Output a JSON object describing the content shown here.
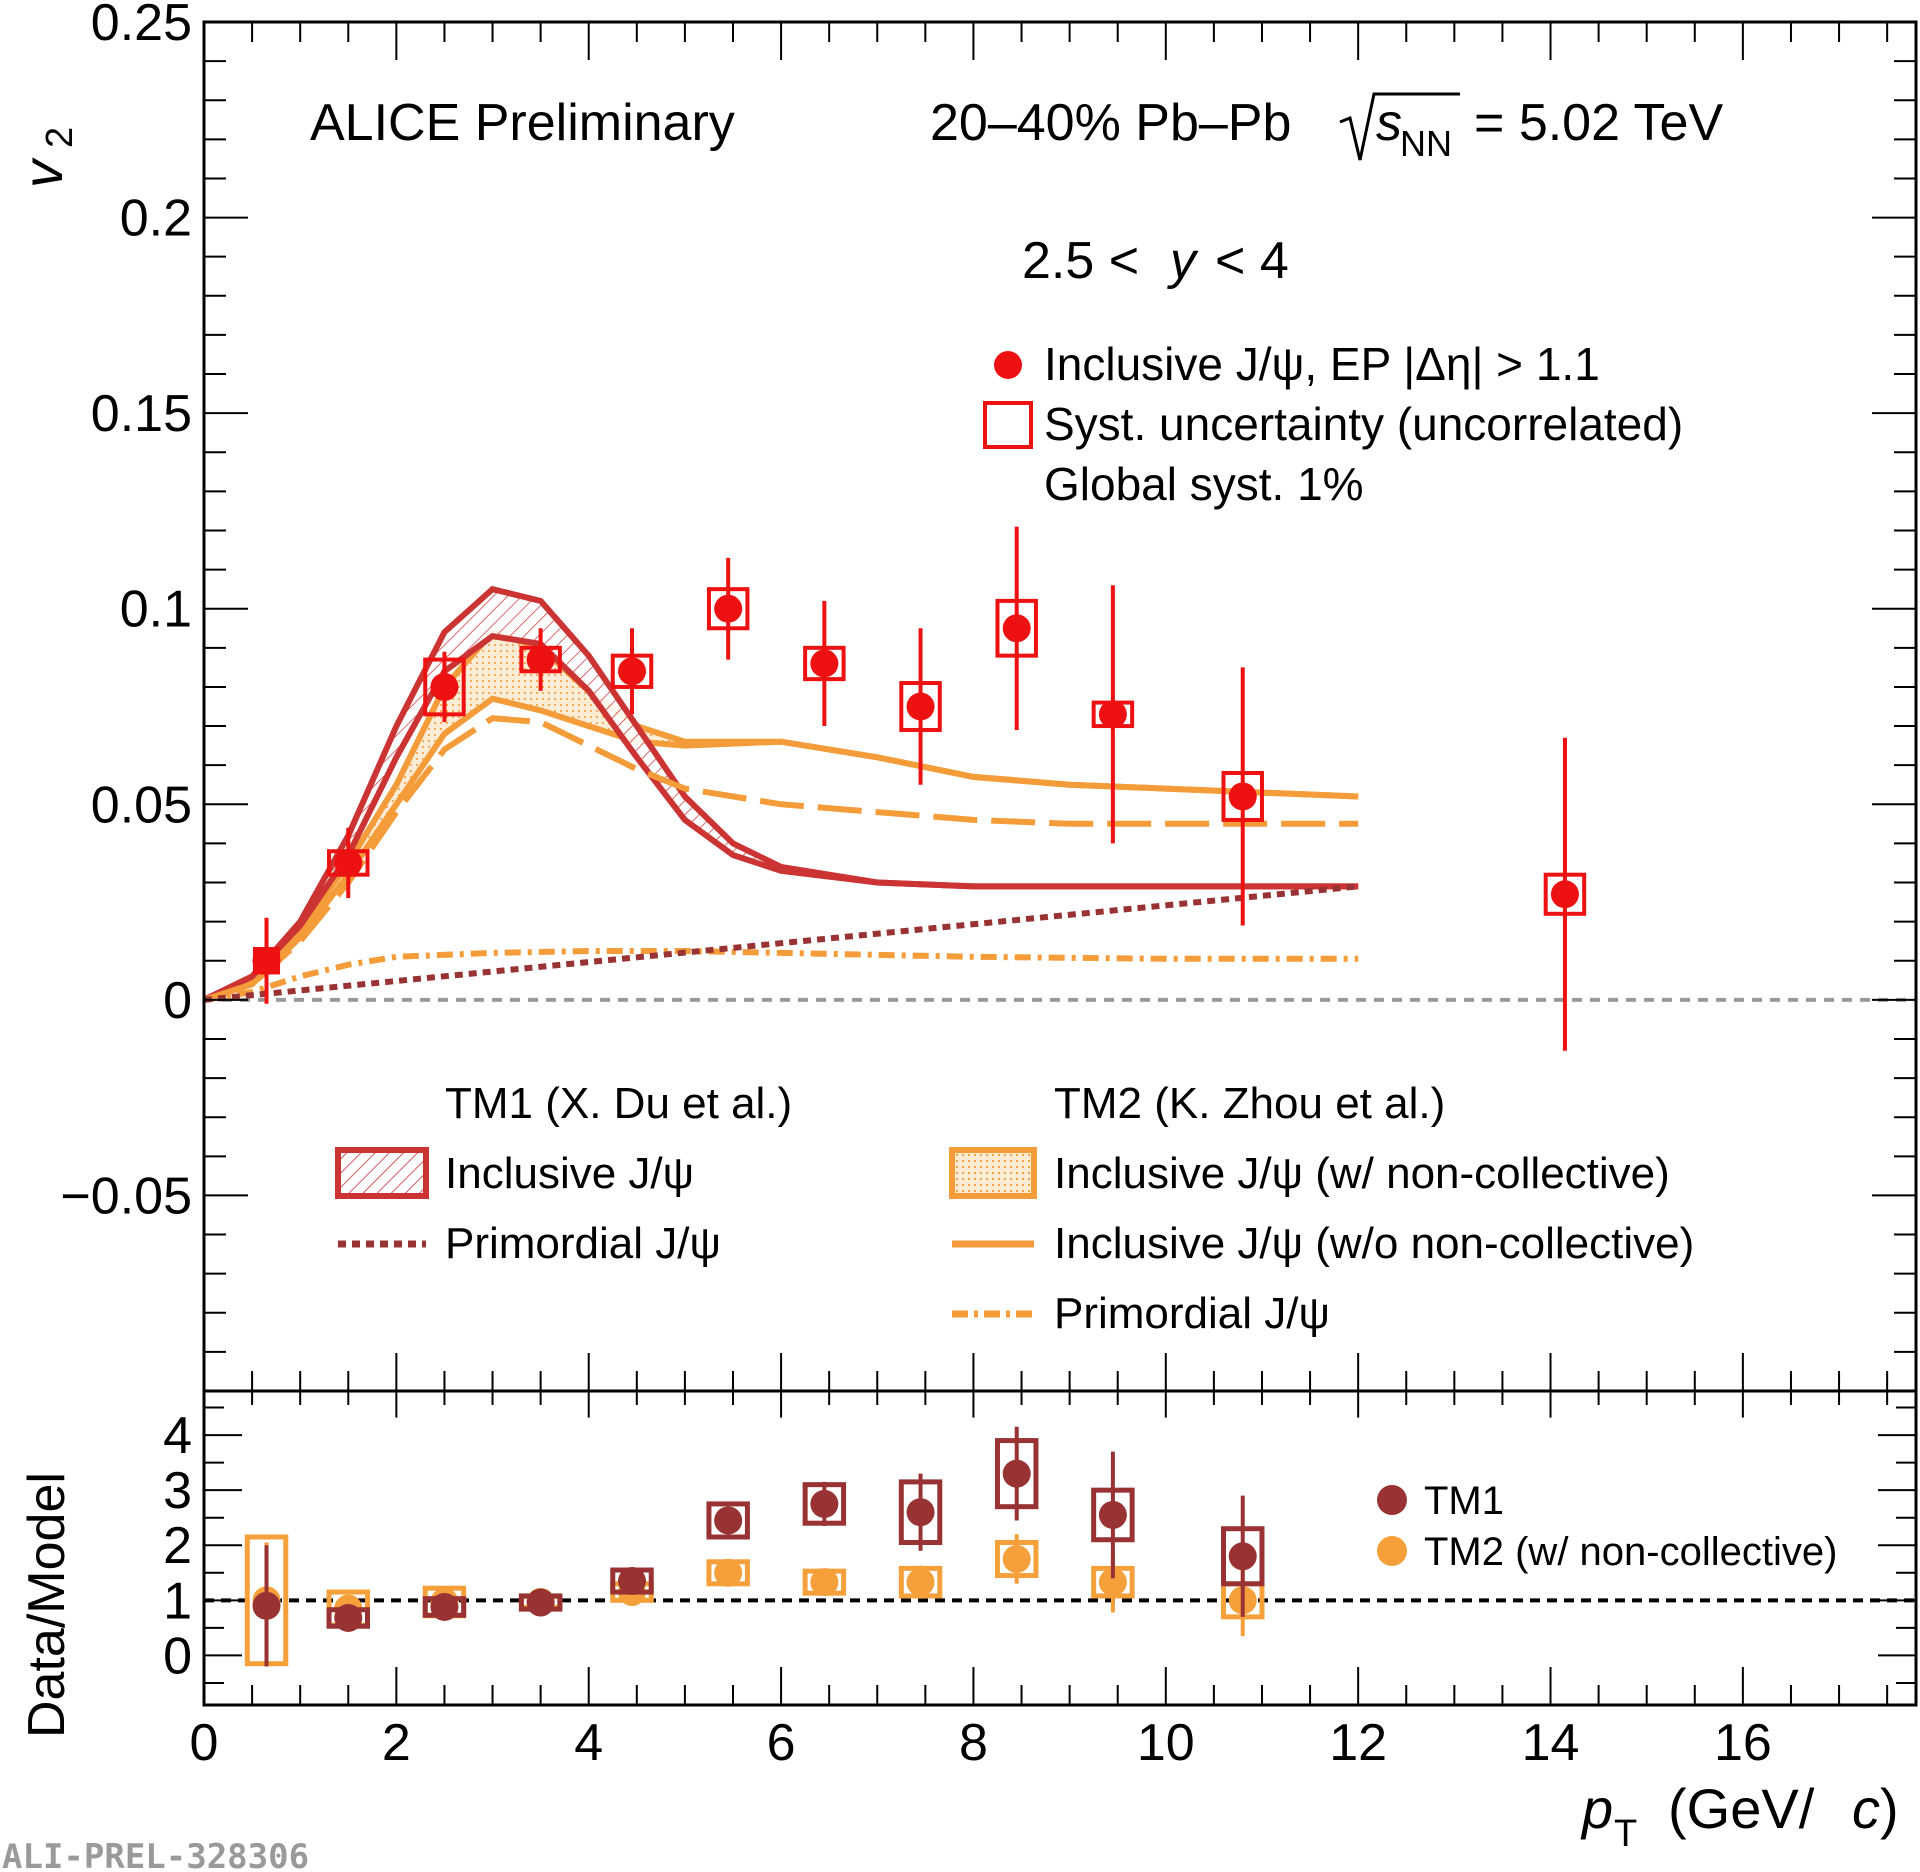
{
  "chart_data": [
    {
      "type": "scatter",
      "panel": "top",
      "ylabel": "v",
      "ylabel_sub": "2",
      "ylim": [
        -0.1,
        0.25
      ],
      "xlim": [
        0,
        17.8
      ],
      "yticks": [
        {
          "v": 0.25,
          "label": "0.25"
        },
        {
          "v": 0.2,
          "label": "0.2"
        },
        {
          "v": 0.15,
          "label": "0.15"
        },
        {
          "v": 0.1,
          "label": "0.1"
        },
        {
          "v": 0.05,
          "label": "0.05"
        },
        {
          "v": 0,
          "label": "0"
        },
        {
          "v": -0.05,
          "label": "−0.05"
        }
      ],
      "annotations": {
        "experiment": "ALICE Preliminary",
        "system_prefix": "20–40% Pb–Pb",
        "sqrt_s": "s",
        "sqrt_s_sub": "NN",
        "energy": "= 5.02 TeV",
        "rapidity_left": "2.5 <",
        "rapidity_var": "y",
        "rapidity_right": "< 4"
      },
      "legend_data": {
        "points": "Inclusive J/ψ, EP |Δη| > 1.1",
        "syst": "Syst. uncertainty (uncorrelated)",
        "global": "Global syst. 1%"
      },
      "legend_models": {
        "tm1_title": "TM1 (X. Du et al.)",
        "tm1_inclusive": "Inclusive J/ψ",
        "tm1_primordial": "Primordial J/ψ",
        "tm2_title": "TM2 (K. Zhou et al.)",
        "tm2_inclusive_w": "Inclusive J/ψ (w/ non-collective)",
        "tm2_inclusive_wo": "Inclusive J/ψ (w/o non-collective)",
        "tm2_primordial": "Primordial J/ψ"
      },
      "series": [
        {
          "name": "Inclusive J/ψ data",
          "color": "#ee1111",
          "points": [
            {
              "x": 0.65,
              "y": 0.01,
              "stat": 0.011,
              "sysx": 0.12,
              "sys": 0.003
            },
            {
              "x": 1.5,
              "y": 0.035,
              "stat": 0.009,
              "sysx": 0.2,
              "sys": 0.003
            },
            {
              "x": 2.5,
              "y": 0.08,
              "stat": 0.009,
              "sysx": 0.2,
              "sys": 0.007
            },
            {
              "x": 3.5,
              "y": 0.087,
              "stat": 0.008,
              "sysx": 0.2,
              "sys": 0.003
            },
            {
              "x": 4.45,
              "y": 0.084,
              "stat": 0.011,
              "sysx": 0.2,
              "sys": 0.004
            },
            {
              "x": 5.45,
              "y": 0.1,
              "stat": 0.013,
              "sysx": 0.2,
              "sys": 0.005
            },
            {
              "x": 6.45,
              "y": 0.086,
              "stat": 0.016,
              "sysx": 0.2,
              "sys": 0.004
            },
            {
              "x": 7.45,
              "y": 0.075,
              "stat": 0.02,
              "sysx": 0.2,
              "sys": 0.006
            },
            {
              "x": 8.45,
              "y": 0.095,
              "stat": 0.026,
              "sysx": 0.2,
              "sys": 0.007
            },
            {
              "x": 9.45,
              "y": 0.073,
              "stat": 0.033,
              "sysx": 0.2,
              "sys": 0.003
            },
            {
              "x": 10.8,
              "y": 0.052,
              "stat": 0.033,
              "sysx": 0.2,
              "sys": 0.006
            },
            {
              "x": 14.15,
              "y": 0.027,
              "stat": 0.04,
              "sysx": 0.2,
              "sys": 0.005
            }
          ]
        },
        {
          "name": "TM1 Inclusive J/ψ band",
          "color": "#cc3333",
          "x": [
            0,
            0.5,
            1,
            1.5,
            2,
            2.5,
            3,
            3.5,
            4,
            4.5,
            5,
            5.5,
            6,
            7,
            8,
            9,
            10,
            11,
            12
          ],
          "upper": [
            0,
            0.006,
            0.02,
            0.042,
            0.07,
            0.094,
            0.105,
            0.102,
            0.088,
            0.07,
            0.052,
            0.04,
            0.034,
            0.03,
            0.029,
            0.029,
            0.029,
            0.029,
            0.029
          ],
          "lower": [
            0,
            0.006,
            0.019,
            0.037,
            0.062,
            0.084,
            0.093,
            0.091,
            0.079,
            0.062,
            0.046,
            0.037,
            0.033,
            0.03,
            0.029,
            0.029,
            0.029,
            0.029,
            0.029
          ]
        },
        {
          "name": "TM1 Primordial J/ψ",
          "color": "#993333",
          "x": [
            0,
            12
          ],
          "y": [
            0,
            0.029
          ]
        },
        {
          "name": "TM2 Inclusive J/ψ (w/ non-collective) band",
          "color": "#f59c3a",
          "x": [
            0,
            0.5,
            1,
            1.5,
            2,
            2.5,
            3,
            3.5,
            4,
            4.5,
            5,
            6,
            7,
            8,
            9,
            10,
            11,
            12
          ],
          "upper": [
            0,
            0.005,
            0.018,
            0.035,
            0.055,
            0.08,
            0.094,
            0.09,
            0.079,
            0.07,
            0.066,
            0.066,
            0.062,
            0.057,
            0.055,
            0.054,
            0.053,
            0.052
          ],
          "lower": [
            0,
            0.004,
            0.016,
            0.032,
            0.05,
            0.068,
            0.077,
            0.074,
            0.07,
            0.066,
            0.065,
            0.066,
            0.062,
            0.057,
            0.055,
            0.054,
            0.053,
            0.052
          ]
        },
        {
          "name": "TM2 Inclusive J/ψ (w/o non-collective)",
          "color": "#f59c3a",
          "x": [
            0,
            0.5,
            1,
            1.5,
            2,
            2.5,
            3,
            3.5,
            4,
            4.5,
            5,
            6,
            7,
            8,
            9,
            10,
            11,
            12
          ],
          "y": [
            0,
            0.004,
            0.015,
            0.03,
            0.048,
            0.064,
            0.072,
            0.071,
            0.065,
            0.059,
            0.054,
            0.05,
            0.048,
            0.046,
            0.045,
            0.045,
            0.045,
            0.045
          ]
        },
        {
          "name": "TM2 Primordial J/ψ",
          "color": "#f59c3a",
          "x": [
            0,
            0.5,
            1,
            1.5,
            2,
            3,
            4,
            5,
            6,
            8,
            10,
            12
          ],
          "y": [
            0,
            0.002,
            0.006,
            0.009,
            0.011,
            0.012,
            0.0125,
            0.0125,
            0.012,
            0.011,
            0.0105,
            0.0105
          ]
        }
      ]
    },
    {
      "type": "scatter",
      "panel": "bottom",
      "ylabel": "Data/Model",
      "xlabel_var": "p",
      "xlabel_sub": "T",
      "xlabel_unit_open": "(GeV/",
      "xlabel_unit_var": "c",
      "xlabel_unit_close": ")",
      "ylim": [
        -0.9,
        4.8
      ],
      "xlim": [
        0,
        17.8
      ],
      "yticks": [
        {
          "v": 0,
          "label": "0"
        },
        {
          "v": 1,
          "label": "1"
        },
        {
          "v": 2,
          "label": "2"
        },
        {
          "v": 3,
          "label": "3"
        },
        {
          "v": 4,
          "label": "4"
        }
      ],
      "xticks": [
        {
          "v": 0,
          "label": "0"
        },
        {
          "v": 2,
          "label": "2"
        },
        {
          "v": 4,
          "label": "4"
        },
        {
          "v": 6,
          "label": "6"
        },
        {
          "v": 8,
          "label": "8"
        },
        {
          "v": 10,
          "label": "10"
        },
        {
          "v": 12,
          "label": "12"
        },
        {
          "v": 14,
          "label": "14"
        },
        {
          "v": 16,
          "label": "16"
        }
      ],
      "legend": {
        "tm1": "TM1",
        "tm2": "TM2 (w/ non-collective)"
      },
      "series": [
        {
          "name": "TM1",
          "color": "#993333",
          "points": [
            {
              "x": 0.65,
              "y": 0.9,
              "stat": 1.1,
              "sys": 0
            },
            {
              "x": 1.5,
              "y": 0.68,
              "stat": 0.2,
              "sys": 0.15
            },
            {
              "x": 2.5,
              "y": 0.88,
              "stat": 0.1,
              "sys": 0.15
            },
            {
              "x": 3.5,
              "y": 0.96,
              "stat": 0.1,
              "sys": 0.12
            },
            {
              "x": 4.45,
              "y": 1.35,
              "stat": 0.18,
              "sys": 0.2
            },
            {
              "x": 5.45,
              "y": 2.45,
              "stat": 0.25,
              "sys": 0.3
            },
            {
              "x": 6.45,
              "y": 2.75,
              "stat": 0.4,
              "sys": 0.35
            },
            {
              "x": 7.45,
              "y": 2.6,
              "stat": 0.7,
              "sys": 0.55
            },
            {
              "x": 8.45,
              "y": 3.3,
              "stat": 0.85,
              "sys": 0.6
            },
            {
              "x": 9.45,
              "y": 2.55,
              "stat": 1.15,
              "sys": 0.45
            },
            {
              "x": 10.8,
              "y": 1.8,
              "stat": 1.1,
              "sys": 0.5
            }
          ]
        },
        {
          "name": "TM2 (w/ non-collective)",
          "color": "#f5a03a",
          "points": [
            {
              "x": 0.65,
              "y": 1.0,
              "stat": 1.05,
              "sys": 1.15
            },
            {
              "x": 1.5,
              "y": 0.85,
              "stat": 0.15,
              "sys": 0.3
            },
            {
              "x": 2.5,
              "y": 0.97,
              "stat": 0.12,
              "sys": 0.25
            },
            {
              "x": 3.5,
              "y": 0.97,
              "stat": 0.08,
              "sys": 0.1
            },
            {
              "x": 4.45,
              "y": 1.15,
              "stat": 0.12,
              "sys": 0.15
            },
            {
              "x": 5.45,
              "y": 1.5,
              "stat": 0.15,
              "sys": 0.2
            },
            {
              "x": 6.45,
              "y": 1.33,
              "stat": 0.2,
              "sys": 0.2
            },
            {
              "x": 7.45,
              "y": 1.33,
              "stat": 0.3,
              "sys": 0.25
            },
            {
              "x": 8.45,
              "y": 1.75,
              "stat": 0.45,
              "sys": 0.3
            },
            {
              "x": 9.45,
              "y": 1.33,
              "stat": 0.55,
              "sys": 0.25
            },
            {
              "x": 10.8,
              "y": 1.0,
              "stat": 0.65,
              "sys": 0.3
            }
          ]
        }
      ]
    }
  ],
  "watermark": "ALI-PREL-328306",
  "colors": {
    "data": "#ee1111",
    "tm1": "#cc3333",
    "tm1_dark": "#993333",
    "tm2": "#f59c3a",
    "zero_line": "#999999"
  }
}
